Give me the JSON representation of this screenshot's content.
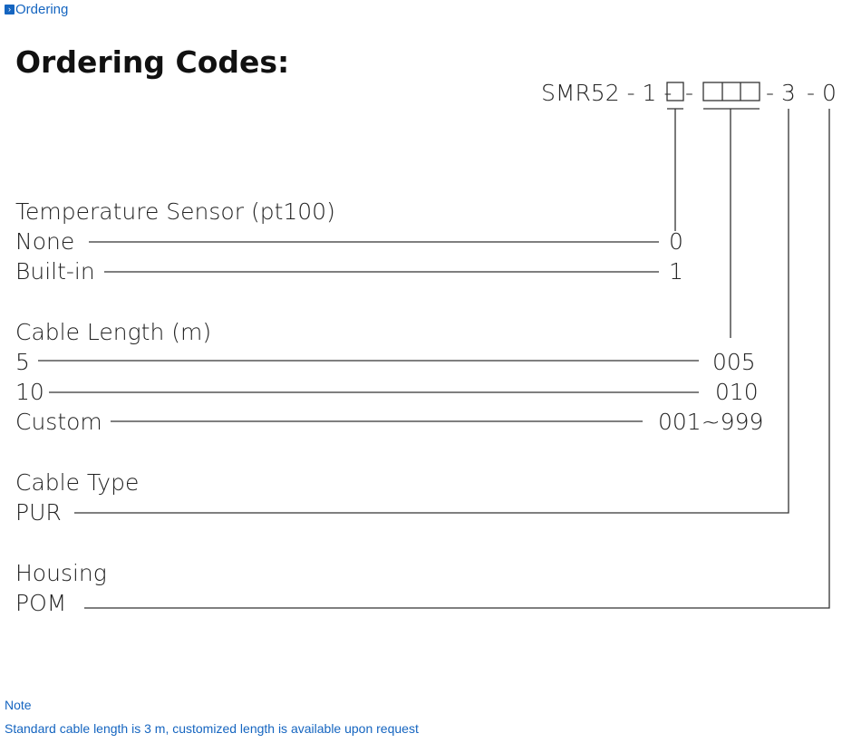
{
  "breadcrumb": {
    "label": "Ordering",
    "icon": "chevron-right-icon"
  },
  "title": "Ordering Codes:",
  "code": {
    "prefix": "SMR52 - 1 -",
    "sep1": "-",
    "sep2": "- 3",
    "sep3": "- 0"
  },
  "sections": [
    {
      "heading": "Temperature Sensor (pt100)",
      "options": [
        {
          "label": "None",
          "code": "0"
        },
        {
          "label": "Built-in",
          "code": "1"
        }
      ]
    },
    {
      "heading": "Cable Length (m)",
      "options": [
        {
          "label": "5",
          "code": "005"
        },
        {
          "label": "10",
          "code": "010"
        },
        {
          "label": "Custom",
          "code": "001~999"
        }
      ]
    },
    {
      "heading": "Cable Type",
      "options": [
        {
          "label": "PUR"
        }
      ]
    },
    {
      "heading": "Housing",
      "options": [
        {
          "label": "POM"
        }
      ]
    }
  ],
  "note": {
    "heading": "Note",
    "text": "Standard cable length is 3 m, customized length is available upon request"
  },
  "colors": {
    "link": "#1565c0",
    "text": "#222222"
  }
}
